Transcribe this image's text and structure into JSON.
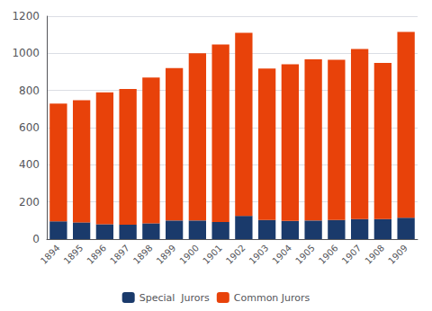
{
  "chart_data": {
    "type": "bar",
    "categories": [
      "1894",
      "1895",
      "1896",
      "1897",
      "1898",
      "1899",
      "1900",
      "1901",
      "1902",
      "1903",
      "1904",
      "1905",
      "1906",
      "1907",
      "1908",
      "1909"
    ],
    "series": [
      {
        "name": "Special  Jurors",
        "color": "#1a3a6b",
        "values": [
          95,
          90,
          80,
          78,
          85,
          100,
          100,
          92,
          125,
          103,
          98,
          100,
          103,
          108,
          108,
          115
        ]
      },
      {
        "name": "Common Jurors",
        "color": "#e8420a",
        "values": [
          635,
          658,
          710,
          730,
          785,
          820,
          900,
          955,
          985,
          815,
          843,
          868,
          862,
          915,
          840,
          1000
        ]
      }
    ],
    "stacked": true,
    "ylim": [
      0,
      1200
    ],
    "yticks": [
      0,
      200,
      400,
      600,
      800,
      1000,
      1200
    ],
    "grid": true,
    "legend": "bottom"
  }
}
